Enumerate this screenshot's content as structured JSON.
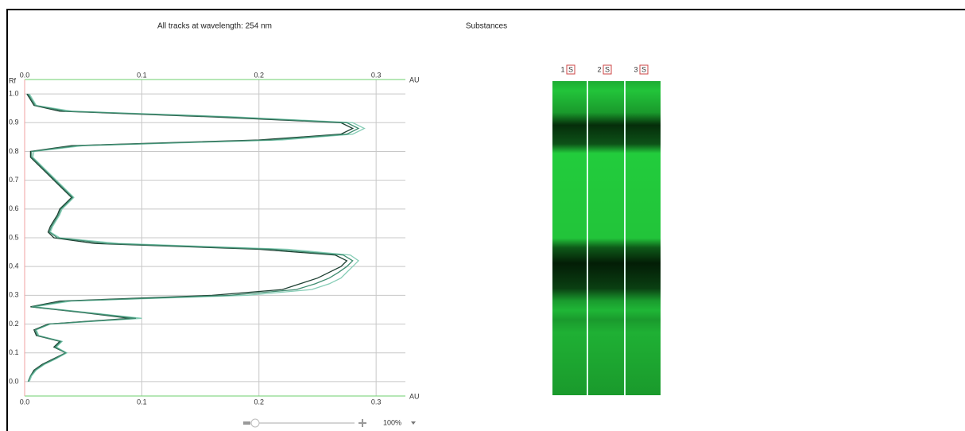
{
  "header": {
    "chart_title": "All tracks at wavelength: 254 nm",
    "substances_title": "Substances"
  },
  "chart_data": {
    "type": "line",
    "orientation": "vertical",
    "x_label": "Rf",
    "y_label": "AU",
    "x": [
      0.0,
      0.02,
      0.04,
      0.06,
      0.08,
      0.1,
      0.12,
      0.14,
      0.16,
      0.18,
      0.2,
      0.22,
      0.24,
      0.26,
      0.28,
      0.3,
      0.32,
      0.34,
      0.36,
      0.38,
      0.4,
      0.42,
      0.44,
      0.46,
      0.48,
      0.5,
      0.52,
      0.54,
      0.56,
      0.58,
      0.6,
      0.62,
      0.64,
      0.66,
      0.68,
      0.7,
      0.72,
      0.74,
      0.76,
      0.78,
      0.8,
      0.82,
      0.84,
      0.86,
      0.88,
      0.9,
      0.92,
      0.94,
      0.96,
      0.98,
      1.0
    ],
    "xlim": [
      -0.05,
      1.05
    ],
    "xticks": [
      {
        "value": 0,
        "label": "0.0"
      },
      0.1,
      0.2,
      0.3,
      0.4,
      0.5,
      0.6,
      0.7,
      0.8,
      0.9,
      {
        "value": 1,
        "label": "1.0"
      }
    ],
    "ylim": [
      0,
      0.325
    ],
    "yticks": [
      {
        "value": 0,
        "label": "0.0"
      },
      0.1,
      0.2,
      0.3
    ],
    "grid": true,
    "series": [
      {
        "color": "#1d3f31",
        "values": [
          0.003,
          0.005,
          0.008,
          0.015,
          0.025,
          0.035,
          0.025,
          0.03,
          0.01,
          0.008,
          0.02,
          0.09,
          0.05,
          0.005,
          0.03,
          0.16,
          0.22,
          0.235,
          0.25,
          0.26,
          0.27,
          0.275,
          0.265,
          0.2,
          0.06,
          0.025,
          0.02,
          0.022,
          0.025,
          0.028,
          0.03,
          0.035,
          0.04,
          0.035,
          0.03,
          0.025,
          0.02,
          0.015,
          0.01,
          0.005,
          0.005,
          0.04,
          0.2,
          0.27,
          0.28,
          0.27,
          0.16,
          0.03,
          0.008,
          0.005,
          0.002
        ]
      },
      {
        "color": "#86cdb6",
        "values": [
          0.004,
          0.006,
          0.01,
          0.017,
          0.027,
          0.036,
          0.027,
          0.032,
          0.012,
          0.01,
          0.022,
          0.1,
          0.055,
          0.008,
          0.04,
          0.19,
          0.245,
          0.26,
          0.27,
          0.275,
          0.28,
          0.285,
          0.278,
          0.225,
          0.08,
          0.03,
          0.022,
          0.024,
          0.027,
          0.03,
          0.032,
          0.037,
          0.042,
          0.037,
          0.032,
          0.027,
          0.022,
          0.017,
          0.012,
          0.007,
          0.008,
          0.05,
          0.22,
          0.28,
          0.29,
          0.28,
          0.18,
          0.04,
          0.01,
          0.007,
          0.004
        ]
      },
      {
        "color": "#3f8c70",
        "values": [
          0.003,
          0.005,
          0.009,
          0.016,
          0.026,
          0.035,
          0.026,
          0.031,
          0.011,
          0.009,
          0.021,
          0.095,
          0.052,
          0.006,
          0.035,
          0.175,
          0.232,
          0.248,
          0.26,
          0.268,
          0.275,
          0.28,
          0.272,
          0.212,
          0.07,
          0.028,
          0.021,
          0.023,
          0.026,
          0.029,
          0.031,
          0.036,
          0.041,
          0.036,
          0.031,
          0.026,
          0.021,
          0.016,
          0.011,
          0.006,
          0.006,
          0.045,
          0.21,
          0.275,
          0.285,
          0.275,
          0.17,
          0.035,
          0.009,
          0.006,
          0.003
        ]
      }
    ]
  },
  "zoom": {
    "level": "100%"
  },
  "tracks": [
    {
      "number": "1",
      "icon": "S"
    },
    {
      "number": "2",
      "icon": "S"
    },
    {
      "number": "3",
      "icon": "S"
    }
  ]
}
